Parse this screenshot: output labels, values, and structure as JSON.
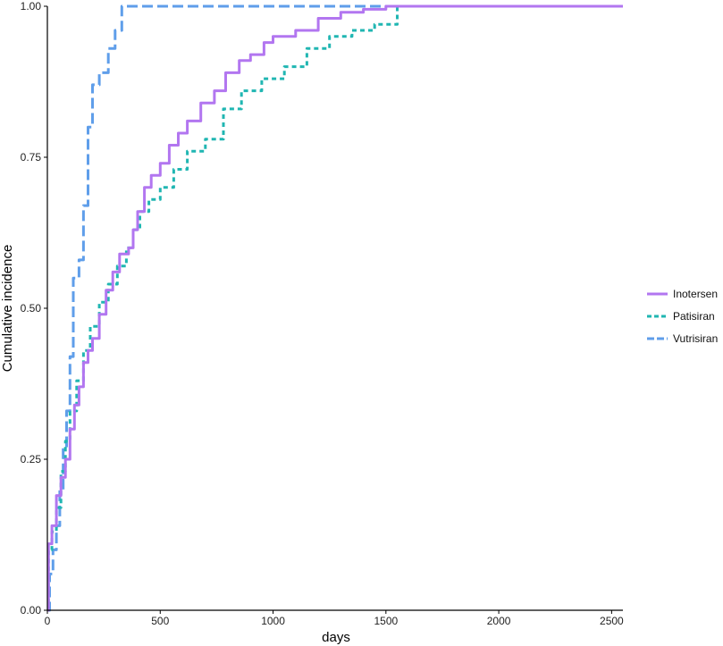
{
  "chart_data": {
    "type": "line",
    "step": true,
    "xlabel": "days",
    "ylabel": "Cumulative incidence",
    "xlim": [
      0,
      2550
    ],
    "ylim": [
      0,
      1
    ],
    "xticks": [
      0,
      500,
      1000,
      1500,
      2000,
      2500
    ],
    "yticks": [
      0.0,
      0.25,
      0.5,
      0.75,
      1.0
    ],
    "xtick_labels": [
      "0",
      "500",
      "1000",
      "1500",
      "2000",
      "2500"
    ],
    "ytick_labels": [
      "0.00",
      "0.25",
      "0.50",
      "0.75",
      "1.00"
    ],
    "grid": false,
    "legend_position": "right",
    "series": [
      {
        "name": "Inotersen",
        "color": "#b276f0",
        "dash": "solid",
        "points": [
          [
            0,
            0.0
          ],
          [
            5,
            0.11
          ],
          [
            20,
            0.14
          ],
          [
            40,
            0.19
          ],
          [
            60,
            0.22
          ],
          [
            80,
            0.25
          ],
          [
            100,
            0.3
          ],
          [
            120,
            0.34
          ],
          [
            140,
            0.37
          ],
          [
            160,
            0.41
          ],
          [
            180,
            0.43
          ],
          [
            200,
            0.45
          ],
          [
            230,
            0.49
          ],
          [
            260,
            0.53
          ],
          [
            290,
            0.56
          ],
          [
            320,
            0.59
          ],
          [
            360,
            0.6
          ],
          [
            380,
            0.63
          ],
          [
            400,
            0.66
          ],
          [
            430,
            0.7
          ],
          [
            460,
            0.72
          ],
          [
            500,
            0.74
          ],
          [
            540,
            0.77
          ],
          [
            580,
            0.79
          ],
          [
            620,
            0.81
          ],
          [
            680,
            0.84
          ],
          [
            740,
            0.86
          ],
          [
            790,
            0.89
          ],
          [
            850,
            0.91
          ],
          [
            900,
            0.92
          ],
          [
            960,
            0.94
          ],
          [
            1000,
            0.95
          ],
          [
            1100,
            0.96
          ],
          [
            1200,
            0.98
          ],
          [
            1300,
            0.99
          ],
          [
            1400,
            0.995
          ],
          [
            1500,
            1.0
          ],
          [
            2550,
            1.0
          ]
        ]
      },
      {
        "name": "Patisiran",
        "color": "#20b6b2",
        "dash": "dotted",
        "points": [
          [
            0,
            0.0
          ],
          [
            5,
            0.1
          ],
          [
            20,
            0.13
          ],
          [
            40,
            0.17
          ],
          [
            60,
            0.23
          ],
          [
            80,
            0.28
          ],
          [
            100,
            0.33
          ],
          [
            130,
            0.38
          ],
          [
            160,
            0.43
          ],
          [
            190,
            0.47
          ],
          [
            230,
            0.51
          ],
          [
            270,
            0.54
          ],
          [
            310,
            0.57
          ],
          [
            350,
            0.6
          ],
          [
            380,
            0.63
          ],
          [
            410,
            0.66
          ],
          [
            450,
            0.68
          ],
          [
            500,
            0.7
          ],
          [
            560,
            0.73
          ],
          [
            620,
            0.76
          ],
          [
            700,
            0.78
          ],
          [
            780,
            0.83
          ],
          [
            860,
            0.86
          ],
          [
            950,
            0.88
          ],
          [
            1050,
            0.9
          ],
          [
            1150,
            0.93
          ],
          [
            1250,
            0.95
          ],
          [
            1350,
            0.96
          ],
          [
            1450,
            0.97
          ],
          [
            1550,
            1.0
          ],
          [
            2550,
            1.0
          ]
        ]
      },
      {
        "name": "Vutrisiran",
        "color": "#5f9eea",
        "dash": "dashed",
        "points": [
          [
            0,
            0.0
          ],
          [
            10,
            0.06
          ],
          [
            25,
            0.1
          ],
          [
            40,
            0.14
          ],
          [
            55,
            0.2
          ],
          [
            70,
            0.27
          ],
          [
            85,
            0.33
          ],
          [
            100,
            0.42
          ],
          [
            115,
            0.55
          ],
          [
            140,
            0.58
          ],
          [
            160,
            0.67
          ],
          [
            180,
            0.8
          ],
          [
            200,
            0.87
          ],
          [
            230,
            0.89
          ],
          [
            270,
            0.93
          ],
          [
            300,
            0.96
          ],
          [
            330,
            1.0
          ],
          [
            2550,
            1.0
          ]
        ]
      }
    ]
  }
}
